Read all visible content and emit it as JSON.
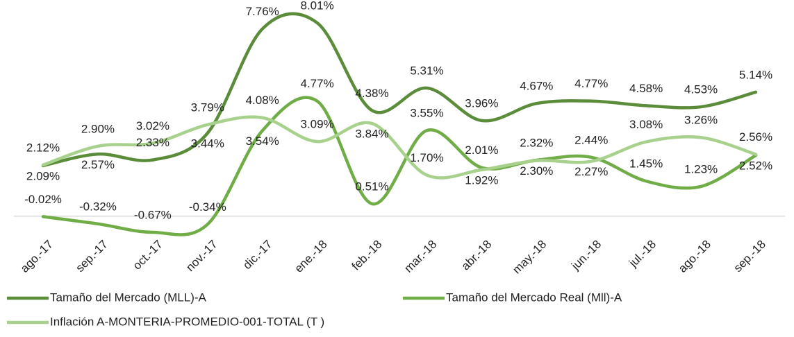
{
  "chart_data": {
    "type": "line",
    "categories": [
      "ago.-17",
      "sep.-17",
      "oct.-17",
      "nov.-17",
      "dic.-17",
      "ene.-18",
      "feb.-18",
      "mar.-18",
      "abr.-18",
      "may.-18",
      "jun.-18",
      "jul.-18",
      "ago.-18",
      "sep.-18"
    ],
    "series": [
      {
        "name": "Tamaño del Mercado (MLL)-A",
        "color": "#5b8c3a",
        "values": [
          2.09,
          2.57,
          2.33,
          3.44,
          7.76,
          8.01,
          4.38,
          5.31,
          3.96,
          4.67,
          4.77,
          4.58,
          4.53,
          5.14
        ],
        "value_labels": [
          "2.09%",
          "2.57%",
          "2.33%",
          "3.44%",
          "7.76%",
          "8.01%",
          "4.38%",
          "5.31%",
          "3.96%",
          "4.67%",
          "4.77%",
          "4.58%",
          "4.53%",
          "5.14%"
        ]
      },
      {
        "name": "Tamaño del Mercado Real (Mll)-A",
        "color": "#70ad47",
        "values": [
          -0.02,
          -0.32,
          -0.67,
          -0.34,
          3.54,
          4.77,
          0.51,
          3.55,
          2.01,
          2.32,
          2.44,
          1.45,
          1.23,
          2.52
        ],
        "value_labels": [
          "-0.02%",
          "-0.32%",
          "-0.67%",
          "-0.34%",
          "3.54%",
          "4.77%",
          "0.51%",
          "3.55%",
          "2.01%",
          "2.32%",
          "2.44%",
          "1.45%",
          "1.23%",
          "2.52%"
        ]
      },
      {
        "name": "Inflación A-MONTERIA-PROMEDIO-001-TOTAL (T )",
        "color": "#a9d18e",
        "values": [
          2.12,
          2.9,
          3.02,
          3.79,
          4.08,
          3.09,
          3.84,
          1.7,
          1.92,
          2.3,
          2.27,
          3.08,
          3.26,
          2.56
        ],
        "value_labels": [
          "2.12%",
          "2.90%",
          "3.02%",
          "3.79%",
          "4.08%",
          "3.09%",
          "3.84%",
          "1.70%",
          "1.92%",
          "2.30%",
          "2.27%",
          "3.08%",
          "3.26%",
          "2.56%"
        ]
      }
    ]
  }
}
